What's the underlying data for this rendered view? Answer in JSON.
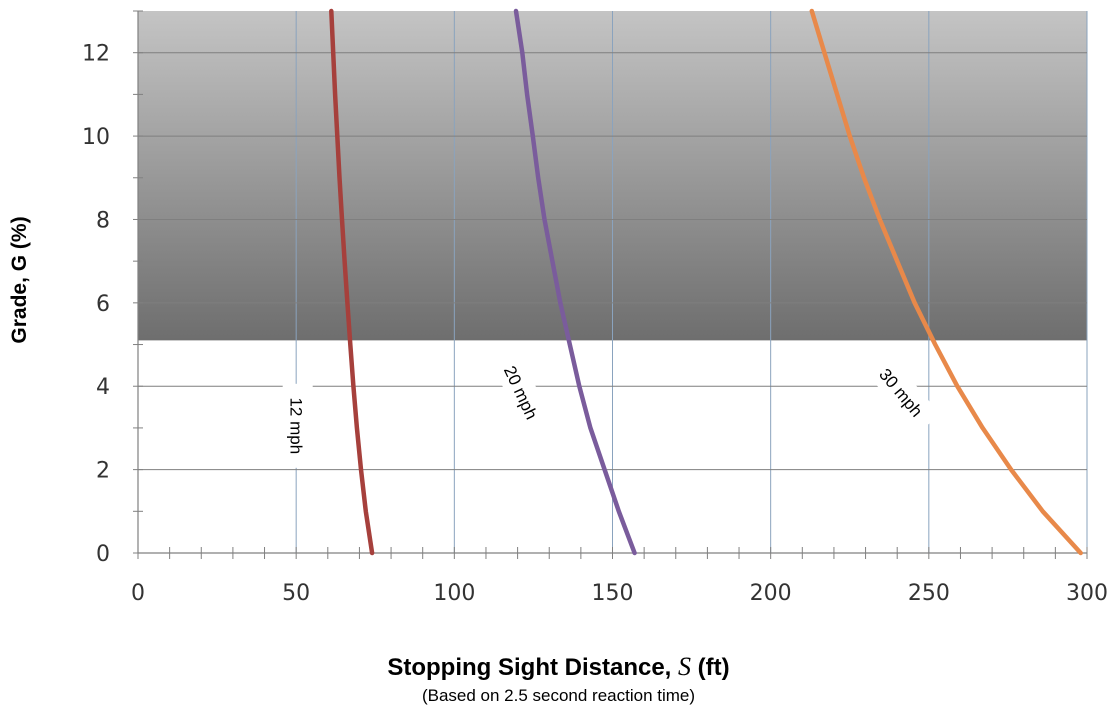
{
  "chart_data": {
    "type": "line",
    "xlabel_prefix": "Stopping Sight Distance, ",
    "xlabel_var": "S",
    "xlabel_suffix": " (ft)",
    "subtitle": "(Based on 2.5 second reaction time)",
    "ylabel": "Grade, G (%)",
    "xlim": [
      0,
      300
    ],
    "ylim": [
      0,
      13
    ],
    "xticks": [
      0,
      50,
      100,
      150,
      200,
      250,
      300
    ],
    "yticks": [
      0,
      2,
      4,
      6,
      8,
      10,
      12
    ],
    "grid": true,
    "shaded_region": {
      "y_from": 5.1,
      "y_to": 13
    },
    "series": [
      {
        "name": "12 mph",
        "color": "#a6403c",
        "points": [
          [
            74,
            0
          ],
          [
            72,
            1
          ],
          [
            70.5,
            2
          ],
          [
            69.2,
            3
          ],
          [
            68.1,
            4
          ],
          [
            67.1,
            5
          ],
          [
            66.2,
            6
          ],
          [
            65.3,
            7
          ],
          [
            64.5,
            8
          ],
          [
            63.7,
            9
          ],
          [
            63,
            10
          ],
          [
            62.3,
            11
          ],
          [
            61.7,
            12
          ],
          [
            61.1,
            13
          ]
        ]
      },
      {
        "name": "20 mph",
        "color": "#7a5c9c",
        "points": [
          [
            157,
            0
          ],
          [
            152,
            1
          ],
          [
            147.5,
            2
          ],
          [
            143,
            3
          ],
          [
            139.5,
            4
          ],
          [
            136.5,
            5
          ],
          [
            133.5,
            6
          ],
          [
            131,
            7
          ],
          [
            128.5,
            8
          ],
          [
            126.5,
            9
          ],
          [
            124.8,
            10
          ],
          [
            123,
            11
          ],
          [
            121.5,
            12
          ],
          [
            119.5,
            13
          ]
        ]
      },
      {
        "name": "30 mph",
        "color": "#e8894a",
        "points": [
          [
            298,
            0
          ],
          [
            286,
            1
          ],
          [
            276,
            2
          ],
          [
            267,
            3
          ],
          [
            259,
            4
          ],
          [
            252,
            5
          ],
          [
            245.5,
            6
          ],
          [
            240,
            7
          ],
          [
            234.5,
            8
          ],
          [
            229.5,
            9
          ],
          [
            225,
            10
          ],
          [
            221,
            11
          ],
          [
            217,
            12
          ],
          [
            213,
            13
          ]
        ]
      }
    ]
  }
}
